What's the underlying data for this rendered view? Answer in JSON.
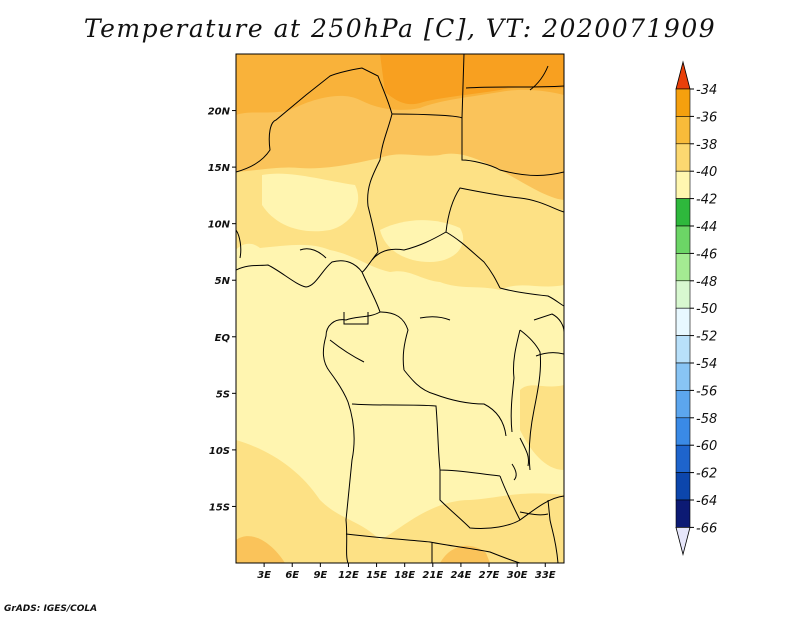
{
  "title": "Temperature at 250hPa [C], VT: 2020071909",
  "credit": "GrADS: IGES/COLA",
  "map": {
    "lon_range": [
      0,
      35
    ],
    "lat_range": [
      -20,
      25
    ],
    "lat_ticks": [
      {
        "value": 20,
        "label": "20N"
      },
      {
        "value": 15,
        "label": "15N"
      },
      {
        "value": 10,
        "label": "10N"
      },
      {
        "value": 5,
        "label": "5N"
      },
      {
        "value": 0,
        "label": "EQ"
      },
      {
        "value": -5,
        "label": "5S"
      },
      {
        "value": -10,
        "label": "10S"
      },
      {
        "value": -15,
        "label": "15S"
      }
    ],
    "lon_ticks": [
      {
        "value": 3,
        "label": "3E"
      },
      {
        "value": 6,
        "label": "6E"
      },
      {
        "value": 9,
        "label": "9E"
      },
      {
        "value": 12,
        "label": "12E"
      },
      {
        "value": 15,
        "label": "15E"
      },
      {
        "value": 18,
        "label": "18E"
      },
      {
        "value": 21,
        "label": "21E"
      },
      {
        "value": 24,
        "label": "24E"
      },
      {
        "value": 27,
        "label": "27E"
      },
      {
        "value": 30,
        "label": "30E"
      },
      {
        "value": 33,
        "label": "33E"
      }
    ]
  },
  "colorbar": {
    "levels": [
      "-34",
      "-36",
      "-38",
      "-40",
      "-42",
      "-44",
      "-46",
      "-48",
      "-50",
      "-52",
      "-54",
      "-56",
      "-58",
      "-60",
      "-62",
      "-64",
      "-66"
    ],
    "top_arrow_color": "#e8400a",
    "bottom_arrow_color": "#e6e6fa",
    "segment_colors": [
      "#f46a0a",
      "#f5a00e",
      "#f8bb3a",
      "#fcd870",
      "#fff7b0",
      "#2eb83c",
      "#6cd566",
      "#a4eb92",
      "#d8f8d0",
      "#e8f8ff",
      "#b8e0fa",
      "#88c4f4",
      "#5ca6ee",
      "#3a8ae6",
      "#1e64cc",
      "#0c46ac",
      "#0c1a74"
    ]
  },
  "colors": {
    "band_minus34": "#f8a020",
    "band_minus36": "#f9b23a",
    "band_minus38": "#fac35a",
    "band_minus40": "#fde185",
    "band_minus42": "#fff5b0",
    "coastline": "#000000"
  }
}
